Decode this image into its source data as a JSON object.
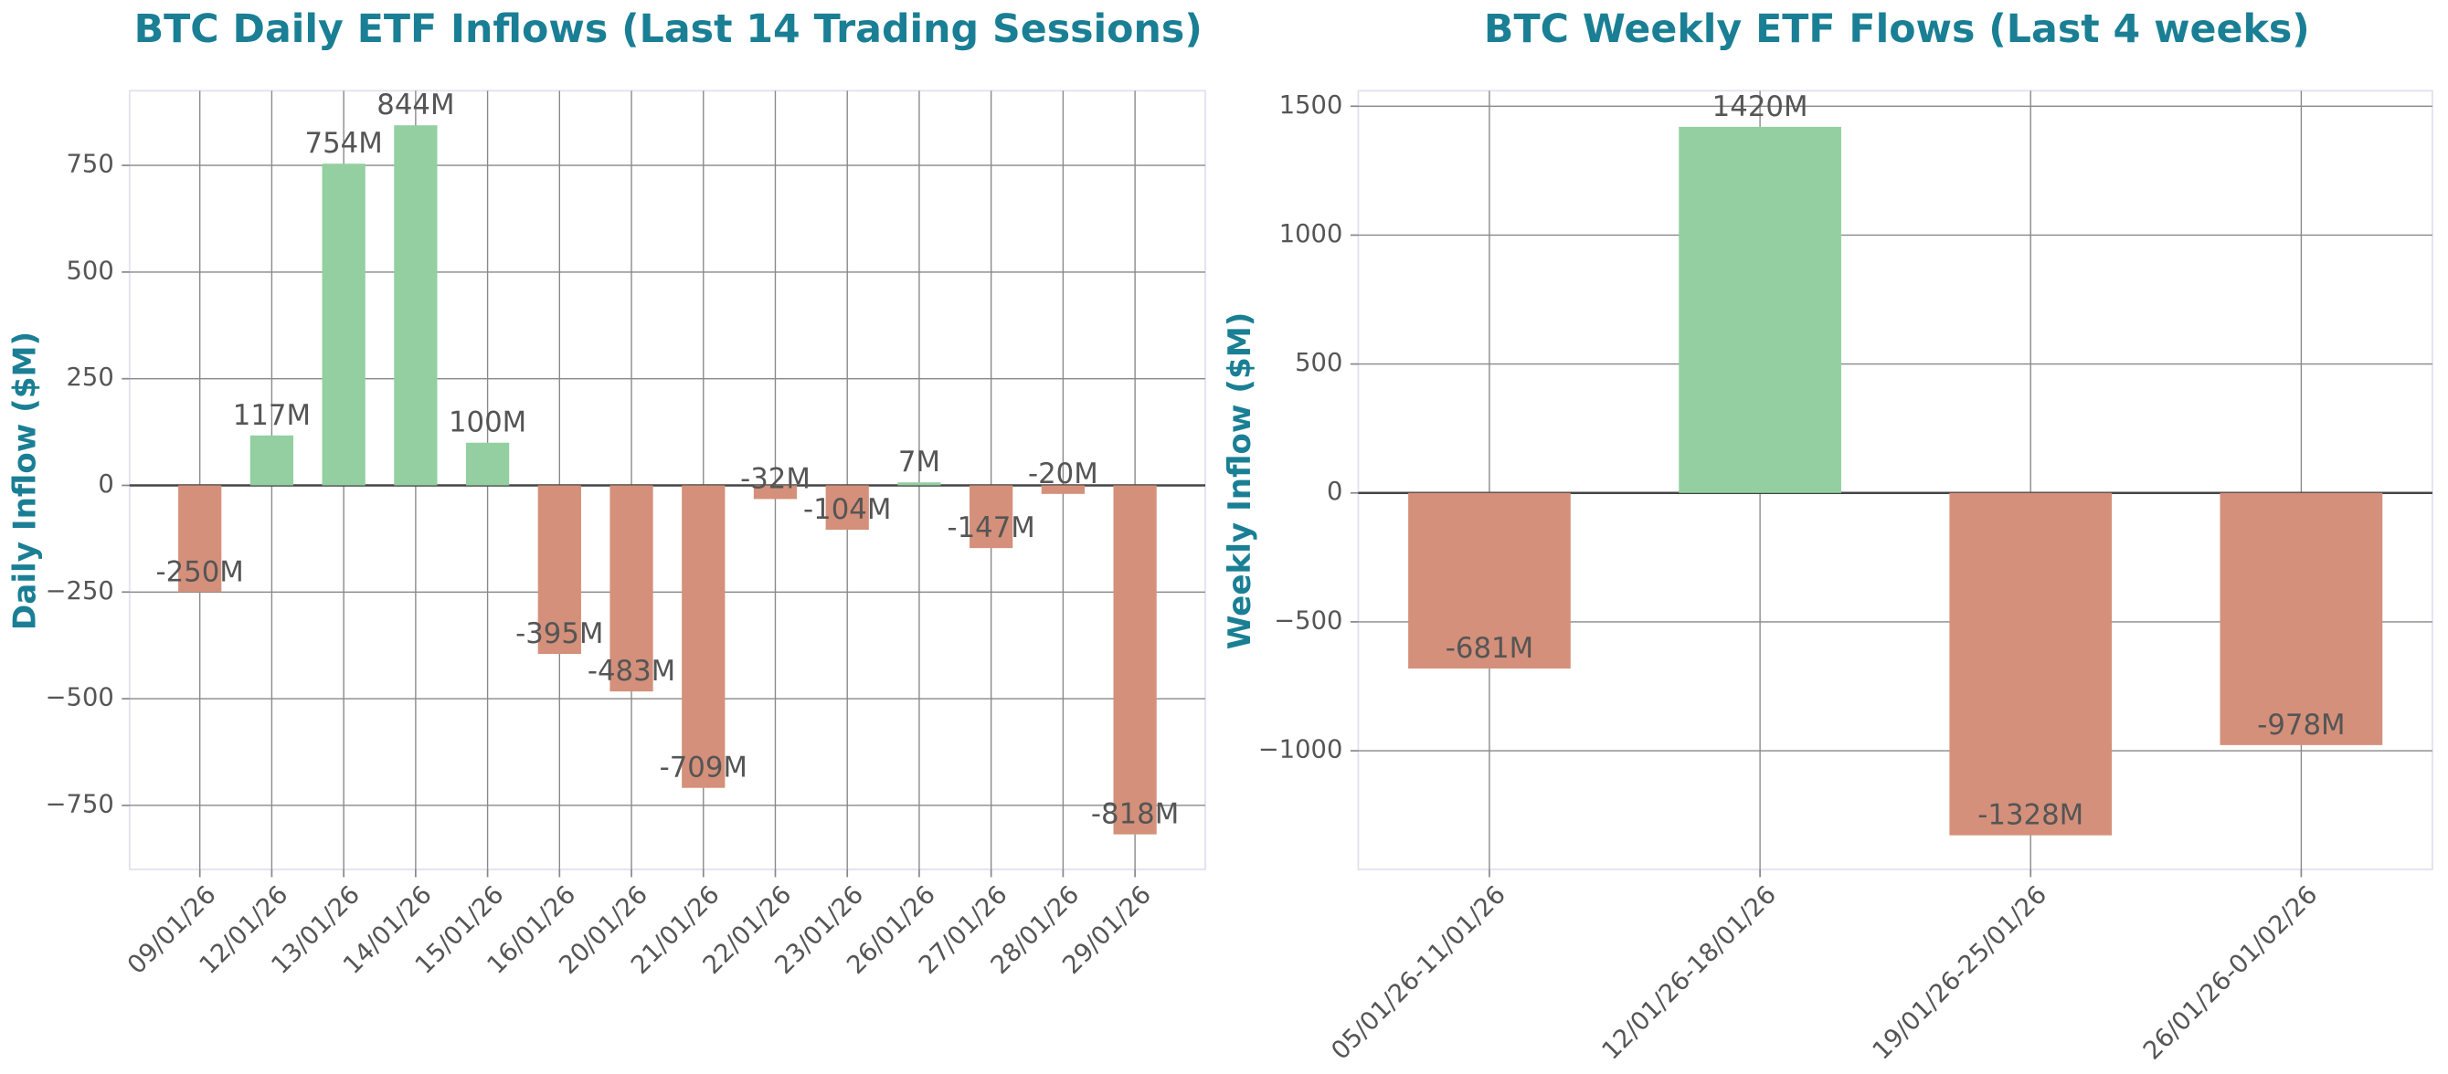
{
  "chart_data": [
    {
      "type": "bar",
      "title": "BTC Daily ETF Inflows (Last 14 Trading Sessions)",
      "ylabel": "Daily Inflow ($M)",
      "categories": [
        "09/01/26",
        "12/01/26",
        "13/01/26",
        "14/01/26",
        "15/01/26",
        "16/01/26",
        "20/01/26",
        "21/01/26",
        "22/01/26",
        "23/01/26",
        "26/01/26",
        "27/01/26",
        "28/01/26",
        "29/01/26"
      ],
      "values": [
        -250,
        117,
        754,
        844,
        100,
        -395,
        -483,
        -709,
        -32,
        -104,
        7,
        -147,
        -20,
        -818
      ],
      "value_labels": [
        "-250M",
        "117M",
        "754M",
        "844M",
        "100M",
        "-395M",
        "-483M",
        "-709M",
        "-32M",
        "-104M",
        "7M",
        "-147M",
        "-20M",
        "-818M"
      ],
      "positive_color": "#93cfa0",
      "negative_color": "#d4907a",
      "ylim": [
        -900,
        925
      ],
      "yticks": [
        {
          "value": -750,
          "label": "−750"
        },
        {
          "value": -500,
          "label": "−500"
        },
        {
          "value": -250,
          "label": "−250"
        },
        0,
        250,
        500,
        750
      ],
      "grid": true
    },
    {
      "type": "bar",
      "title": "BTC Weekly ETF Flows (Last 4 weeks)",
      "ylabel": "Weekly Inflow ($M)",
      "categories": [
        "05/01/26-11/01/26",
        "12/01/26-18/01/26",
        "19/01/26-25/01/26",
        "26/01/26-01/02/26"
      ],
      "values": [
        -681,
        1420,
        -1328,
        -978
      ],
      "value_labels": [
        "-681M",
        "1420M",
        "-1328M",
        "-978M"
      ],
      "positive_color": "#93cfa0",
      "negative_color": "#d4907a",
      "ylim": [
        -1460,
        1560
      ],
      "yticks": [
        {
          "value": -1000,
          "label": "−1000"
        },
        {
          "value": -500,
          "label": "−500"
        },
        0,
        500,
        1000,
        1500
      ],
      "grid": true
    }
  ]
}
